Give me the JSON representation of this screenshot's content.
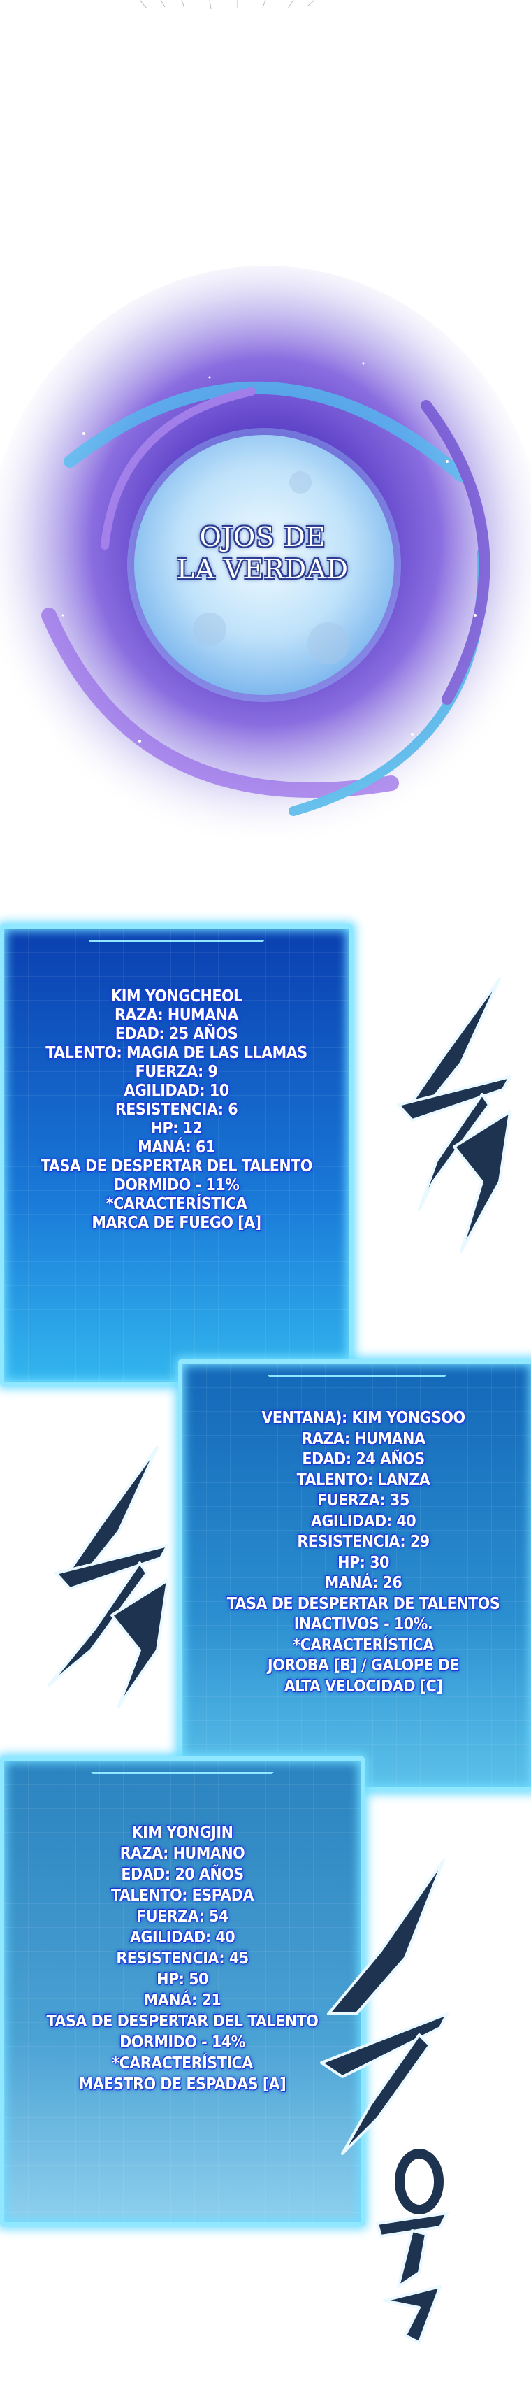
{
  "title_moon": {
    "line1": "OJOS DE",
    "line2": "LA VERDAD"
  },
  "panels": [
    {
      "lines": [
        "KIM YONGCHEOL",
        "RAZA: HUMANA",
        "EDAD: 25 AÑOS",
        "TALENTO: MAGIA DE LAS LLAMAS",
        "FUERZA: 9",
        "AGILIDAD: 10",
        "RESISTENCIA: 6",
        "HP: 12",
        "MANÁ: 61",
        "TASA DE DESPERTAR DEL TALENTO",
        "DORMIDO - 11%",
        "*CARACTERÍSTICA",
        "MARCA DE FUEGO [A]"
      ]
    },
    {
      "lines": [
        "VENTANA): KIM YONGSOO",
        "RAZA: HUMANA",
        "EDAD: 24 AÑOS",
        "TALENTO: LANZA",
        "FUERZA: 35",
        "AGILIDAD: 40",
        "RESISTENCIA: 29",
        "HP: 30",
        "MANÁ: 26",
        "TASA DE DESPERTAR DE TALENTOS",
        "INACTIVOS - 10%.",
        "*CARACTERÍSTICA",
        "JOROBA [B] / GALOPE DE",
        "ALTA VELOCIDAD [C]"
      ]
    },
    {
      "lines": [
        "KIM YONGJIN",
        "RAZA: HUMANO",
        "EDAD: 20 AÑOS",
        "TALENTO: ESPADA",
        "FUERZA: 54",
        "AGILIDAD: 40",
        "RESISTENCIA: 45",
        "HP: 50",
        "MANÁ: 21",
        "TASA DE DESPERTAR DEL TALENTO",
        "DORMIDO - 14%",
        "*CARACTERÍSTICA",
        "MAESTRO DE ESPADAS [A]"
      ]
    }
  ],
  "colors": {
    "panel_glow": "#8fe8ff",
    "text_outline": "#1b3bd0",
    "sfx_stroke": "#1d3350",
    "moon": "#cfe9ff",
    "nebula_purple": "#7a4fd8"
  },
  "icons": [
    "moon-illustration",
    "nebula-illustration",
    "whoosh-sfx"
  ]
}
